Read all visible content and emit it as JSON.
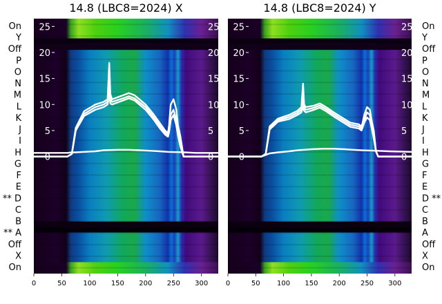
{
  "chart_data": [
    {
      "type": "heatmap",
      "title": "14.8 (LBC8=2024) X",
      "x_ticks": [
        0,
        50,
        100,
        150,
        200,
        250,
        300
      ],
      "xlim": [
        0,
        330
      ],
      "y_ticks": [
        0,
        5,
        10,
        15,
        20,
        25
      ],
      "ylim": [
        -22.5,
        26.5
      ],
      "row_labels": [
        "On",
        "Y",
        "Off",
        "P",
        "O",
        "N",
        "M",
        "L",
        "K",
        "J",
        "I",
        "H",
        "G",
        "F",
        "E",
        "** D",
        "C",
        "B",
        "** A",
        "Off",
        "X",
        "On"
      ],
      "label_side": "left",
      "grid": false,
      "series": [
        {
          "x": [
            0,
            60,
            68,
            75,
            90,
            110,
            125,
            132,
            135,
            137,
            140,
            160,
            170,
            180,
            200,
            215,
            225,
            235,
            240,
            242,
            245,
            250,
            255,
            258,
            262,
            268,
            275,
            290,
            320,
            330
          ],
          "y": [
            0,
            0,
            0.5,
            5.5,
            8.7,
            10.0,
            10.5,
            11,
            18,
            12,
            11,
            11.8,
            12.2,
            11.8,
            10.0,
            8.0,
            6.5,
            5.0,
            4.5,
            6,
            10,
            11,
            9,
            6,
            4,
            0,
            0,
            0,
            0,
            0
          ]
        },
        {
          "x": [
            0,
            60,
            68,
            75,
            90,
            110,
            125,
            132,
            135,
            137,
            140,
            160,
            170,
            180,
            200,
            215,
            225,
            235,
            240,
            242,
            245,
            250,
            255,
            258,
            262,
            268,
            275,
            290,
            320,
            330
          ],
          "y": [
            0,
            0,
            0.5,
            5.2,
            8.2,
            9.5,
            10.0,
            10.5,
            14,
            11,
            10.5,
            11.2,
            11.6,
            11.2,
            9.5,
            7.5,
            6.0,
            4.6,
            4.2,
            5,
            8,
            9,
            7,
            5,
            3,
            0,
            0,
            0,
            0,
            0
          ]
        },
        {
          "x": [
            0,
            60,
            68,
            75,
            90,
            110,
            125,
            132,
            135,
            137,
            140,
            160,
            170,
            180,
            200,
            215,
            225,
            235,
            240,
            242,
            245,
            250,
            255,
            258,
            262,
            268,
            275,
            290,
            320,
            330
          ],
          "y": [
            0,
            0,
            0.5,
            5.0,
            7.8,
            9.0,
            9.5,
            10,
            12,
            10.2,
            10,
            10.8,
            11.2,
            10.8,
            9.0,
            7.0,
            5.5,
            4.2,
            3.8,
            4.6,
            7,
            8,
            6,
            4,
            2,
            0,
            0,
            0,
            0,
            0
          ]
        },
        {
          "x": [
            0,
            60,
            68,
            75,
            90,
            110,
            125,
            150,
            170,
            190,
            210,
            225,
            240,
            270,
            290,
            330
          ],
          "y": [
            0.7,
            0.7,
            0.8,
            0.8,
            0.9,
            1.0,
            1.2,
            1.3,
            1.3,
            1.2,
            1.1,
            1.0,
            0.9,
            0.8,
            0.7,
            0.7
          ]
        }
      ]
    },
    {
      "type": "heatmap",
      "title": "14.8 (LBC8=2024) Y",
      "x_ticks": [
        0,
        50,
        100,
        150,
        200,
        250,
        300
      ],
      "xlim": [
        0,
        330
      ],
      "y_ticks": [
        0,
        5,
        10,
        15,
        20,
        25
      ],
      "ylim": [
        -22.5,
        26.5
      ],
      "row_labels": [
        "On",
        "Y",
        "Off",
        "P",
        "O",
        "N",
        "M",
        "L",
        "K",
        "J",
        "I",
        "H",
        "G",
        "F",
        "E",
        "D **",
        "C",
        "B",
        "A",
        "Off",
        "X",
        "On"
      ],
      "label_side": "right",
      "grid": false,
      "series": [
        {
          "x": [
            0,
            60,
            68,
            75,
            90,
            110,
            125,
            132,
            135,
            137,
            140,
            155,
            165,
            175,
            190,
            205,
            220,
            235,
            240,
            242,
            245,
            250,
            255,
            258,
            262,
            266,
            270,
            275,
            290,
            320,
            330
          ],
          "y": [
            0,
            0,
            0.5,
            5.8,
            7.3,
            8.0,
            8.8,
            9.5,
            14,
            10,
            9.5,
            9.8,
            10.2,
            9.6,
            8.5,
            7.5,
            6.5,
            6.2,
            5.8,
            6.5,
            8,
            9.5,
            9,
            7,
            5,
            1,
            0,
            0,
            0,
            0,
            0
          ]
        },
        {
          "x": [
            0,
            60,
            68,
            75,
            90,
            110,
            125,
            132,
            135,
            137,
            140,
            155,
            165,
            175,
            190,
            205,
            220,
            235,
            240,
            242,
            245,
            250,
            255,
            258,
            262,
            266,
            270,
            275,
            290,
            320,
            330
          ],
          "y": [
            0,
            0,
            0.5,
            5.5,
            7.0,
            7.6,
            8.4,
            9.0,
            11,
            9.4,
            9.0,
            9.4,
            9.8,
            9.2,
            8.1,
            7.1,
            6.1,
            5.8,
            5.4,
            6,
            7,
            8.5,
            8,
            6,
            4,
            1,
            0,
            0,
            0,
            0,
            0
          ]
        },
        {
          "x": [
            0,
            60,
            68,
            75,
            90,
            110,
            125,
            132,
            135,
            137,
            140,
            155,
            165,
            175,
            190,
            205,
            220,
            235,
            240,
            242,
            245,
            250,
            255,
            258,
            262,
            266,
            270,
            275,
            290,
            320,
            330
          ],
          "y": [
            0,
            0,
            0.5,
            5.2,
            6.7,
            7.2,
            8.0,
            8.5,
            9.5,
            8.8,
            8.5,
            9.0,
            9.4,
            8.8,
            7.7,
            6.7,
            5.7,
            5.4,
            5.0,
            5.6,
            6.5,
            7.5,
            7,
            5.5,
            3.5,
            1,
            0,
            0,
            0,
            0,
            0
          ]
        },
        {
          "x": [
            0,
            60,
            68,
            75,
            90,
            110,
            125,
            150,
            170,
            190,
            210,
            225,
            240,
            270,
            290,
            330
          ],
          "y": [
            0,
            0,
            0.3,
            0.6,
            0.8,
            1.0,
            1.2,
            1.4,
            1.5,
            1.5,
            1.4,
            1.3,
            1.2,
            1.1,
            1.0,
            0.9
          ]
        }
      ]
    }
  ]
}
